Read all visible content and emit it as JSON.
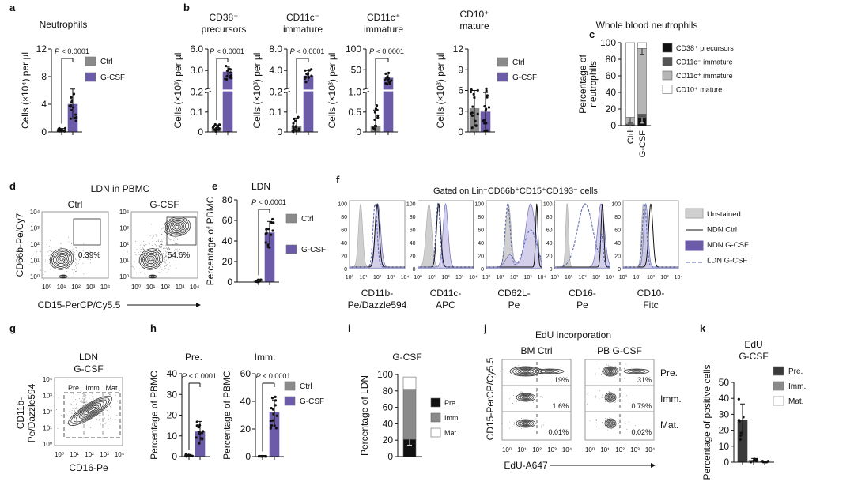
{
  "colors": {
    "ctrl": "#8a8a8a",
    "gcsf": "#6b5ba8",
    "gcsf_light": "#c9c4e6",
    "unstained": "#cfcfcf",
    "black": "#111111",
    "dark_gray": "#555555",
    "light_gray": "#b5b5b5",
    "white": "#ffffff",
    "pre_k": "#3a3a3a"
  },
  "panel_letters": [
    "a",
    "b",
    "c",
    "d",
    "e",
    "f",
    "g",
    "h",
    "i",
    "j",
    "k"
  ],
  "legend_two": {
    "ctrl": "Ctrl",
    "gcsf": "G-CSF"
  },
  "pvalue": "P < 0.0001",
  "chart_data": [
    {
      "id": "a",
      "type": "bar",
      "title": [
        "Neutrophils"
      ],
      "ylabel": "Cells (×10⁴) per µl",
      "ylim": [
        0,
        12
      ],
      "yticks": [
        "0",
        "4",
        "8",
        "12"
      ],
      "categories": [
        "Ctrl",
        "G-CSF"
      ],
      "values": [
        0.3,
        4.0
      ],
      "errors": [
        0.2,
        2.2
      ],
      "pvalue": "P < 0.0001",
      "legend": [
        "Ctrl",
        "G-CSF"
      ]
    },
    {
      "id": "b1",
      "type": "bar",
      "title": [
        "CD38⁺",
        "precursors"
      ],
      "ylabel": "Cells (×10³) per µl",
      "y_segments": [
        [
          0,
          0.2
        ],
        [
          0.45,
          6.0
        ]
      ],
      "yticks": [
        "0",
        "0.1",
        "0.2",
        "3.0",
        "6.0"
      ],
      "categories": [
        "Ctrl",
        "G-CSF"
      ],
      "values": [
        0.02,
        2.8
      ],
      "errors": [
        0.015,
        0.8
      ],
      "pvalue": "P < 0.0001"
    },
    {
      "id": "b2",
      "type": "bar",
      "title": [
        "CD11c⁻",
        "immature"
      ],
      "ylabel": "Cells (×10³) per µl",
      "y_segments": [
        [
          0,
          0.2
        ],
        [
          0.6,
          8.0
        ]
      ],
      "yticks": [
        "0",
        "0.1",
        "0.2",
        "4.0",
        "8.0"
      ],
      "categories": [
        "Ctrl",
        "G-CSF"
      ],
      "values": [
        0.03,
        3.0
      ],
      "errors": [
        0.04,
        1.0
      ],
      "pvalue": "P < 0.0001"
    },
    {
      "id": "b3",
      "type": "bar",
      "title": [
        "CD11c⁺",
        "immature"
      ],
      "ylabel": "Cells (×10³) per µl",
      "y_segments": [
        [
          0,
          1.0
        ],
        [
          4,
          100
        ]
      ],
      "yticks": [
        "0",
        "0.5",
        "1.0",
        "50",
        "100"
      ],
      "categories": [
        "Ctrl",
        "G-CSF"
      ],
      "values": [
        0.15,
        30
      ],
      "errors": [
        0.4,
        12
      ],
      "pvalue": "P < 0.0001"
    },
    {
      "id": "b4",
      "type": "bar",
      "title": [
        "CD10⁺",
        "mature"
      ],
      "ylabel": "Cells (×10³) per µl",
      "ylim": [
        0,
        12
      ],
      "yticks": [
        "0",
        "3",
        "6",
        "9",
        "12"
      ],
      "categories": [
        "Ctrl",
        "G-CSF"
      ],
      "values": [
        3.4,
        2.9
      ],
      "errors": [
        2.6,
        2.8
      ],
      "legend": [
        "Ctrl",
        "G-CSF"
      ]
    },
    {
      "id": "c",
      "type": "stacked_bar",
      "title": [
        "Whole blood neutrophils"
      ],
      "ylabel": [
        "Percentage of",
        "neutrophils"
      ],
      "ylim": [
        0,
        100
      ],
      "yticks": [
        "0",
        "20",
        "40",
        "60",
        "80",
        "100"
      ],
      "categories": [
        "Ctrl",
        "G-CSF"
      ],
      "series": [
        {
          "name": "CD38⁺ precursors",
          "values": [
            1,
            10
          ]
        },
        {
          "name": "CD11c⁻ immature",
          "values": [
            1,
            4
          ]
        },
        {
          "name": "CD11c⁺ immature",
          "values": [
            8,
            79
          ]
        },
        {
          "name": "CD10⁺ mature",
          "values": [
            90,
            7
          ]
        }
      ]
    },
    {
      "id": "d",
      "type": "flow",
      "title": "LDN in PBMC",
      "plots": [
        {
          "label": "Ctrl",
          "gate": "0.39%"
        },
        {
          "label": "G-CSF",
          "gate": "54.6%"
        }
      ],
      "xlabel": "CD15-PerCP/Cy5.5",
      "ylabel": "CD66b-Pe/Cy7",
      "ticks": [
        "10⁰",
        "10¹",
        "10²",
        "10³",
        "10⁴"
      ]
    },
    {
      "id": "e",
      "type": "bar",
      "title": [
        "LDN"
      ],
      "ylabel": "Percentage of PBMC",
      "ylim": [
        0,
        80
      ],
      "yticks": [
        "0",
        "20",
        "40",
        "60",
        "80"
      ],
      "categories": [
        "Ctrl",
        "G-CSF"
      ],
      "values": [
        1,
        48
      ],
      "errors": [
        1,
        11
      ],
      "pvalue": "P < 0.0001",
      "legend": [
        "Ctrl",
        "G-CSF"
      ]
    },
    {
      "id": "f",
      "type": "histogram",
      "title": "Gated on Lin⁻CD66b⁺CD15⁺CD193⁻ cells",
      "yticks": [
        "0",
        "20",
        "40",
        "60",
        "80",
        "100"
      ],
      "xticks": [
        "10⁰",
        "10¹",
        "10²",
        "10³",
        "10⁴"
      ],
      "legend": [
        "Unstained",
        "NDN Ctrl",
        "NDN G-CSF",
        "LDN G-CSF"
      ],
      "markers": [
        {
          "label": [
            "CD11b-",
            "Pe/Dazzle594"
          ],
          "unstained": [
            [
              0.8,
              0.15,
              1
            ]
          ],
          "ndn_ctrl": [
            [
              2.0,
              0.15,
              1
            ]
          ],
          "ndn_gcsf": [
            [
              2.05,
              0.2,
              1
            ]
          ],
          "ldn_gcsf": [
            [
              1.85,
              0.15,
              1
            ]
          ]
        },
        {
          "label": [
            "CD11c-",
            "APC"
          ],
          "unstained": [
            [
              0.8,
              0.2,
              1
            ]
          ],
          "ndn_ctrl": [
            [
              1.5,
              0.15,
              1
            ]
          ],
          "ndn_gcsf": [
            [
              2.0,
              0.18,
              1
            ]
          ],
          "ldn_gcsf": [
            [
              1.45,
              0.15,
              1
            ]
          ]
        },
        {
          "label": [
            "CD62L-",
            "Pe"
          ],
          "unstained": [
            [
              1.6,
              0.2,
              1
            ]
          ],
          "ndn_ctrl": [
            [
              3.65,
              0.08,
              1
            ]
          ],
          "ndn_gcsf": [
            [
              1.7,
              0.3,
              0.15
            ],
            [
              3.2,
              0.35,
              0.78
            ]
          ],
          "ldn_gcsf": [
            [
              1.55,
              0.18,
              0.85
            ],
            [
              3.2,
              0.45,
              0.5
            ]
          ]
        },
        {
          "label": [
            "CD16-",
            "Pe"
          ],
          "unstained": [
            [
              0.9,
              0.1,
              1
            ]
          ],
          "ndn_ctrl": [
            [
              3.45,
              0.1,
              1
            ]
          ],
          "ndn_gcsf": [
            [
              3.35,
              0.25,
              1
            ]
          ],
          "ldn_gcsf": [
            [
              2.2,
              0.55,
              0.95
            ],
            [
              3.4,
              0.1,
              0.4
            ]
          ]
        },
        {
          "label": [
            "CD10-",
            "Fitc"
          ],
          "unstained": [
            [
              1.45,
              0.12,
              1
            ]
          ],
          "ndn_ctrl": [
            [
              2.0,
              0.15,
              1
            ]
          ],
          "ndn_gcsf": [
            [
              1.65,
              0.15,
              1
            ]
          ],
          "ldn_gcsf": [
            [
              1.55,
              0.15,
              0.98
            ]
          ]
        }
      ]
    },
    {
      "id": "g",
      "type": "flow",
      "title": [
        "LDN",
        "G-CSF"
      ],
      "xlabel": "CD16-Pe",
      "ylabel": [
        "CD11b-",
        "Pe/Dazzle594"
      ],
      "gates": [
        "Pre",
        "Imm",
        "Mat"
      ],
      "ticks": [
        "10⁰",
        "10¹",
        "10²",
        "10³",
        "10⁴"
      ]
    },
    {
      "id": "h1",
      "type": "bar",
      "title": [
        "Pre."
      ],
      "ylabel": "Percentage of  PBMC",
      "ylim": [
        0,
        40
      ],
      "yticks": [
        "0",
        "10",
        "20",
        "30",
        "40"
      ],
      "categories": [
        "Ctrl",
        "G-CSF"
      ],
      "values": [
        0.5,
        12
      ],
      "errors": [
        0.4,
        5
      ],
      "pvalue": "P < 0.0001"
    },
    {
      "id": "h2",
      "type": "bar",
      "title": [
        "Imm."
      ],
      "ylabel": "Percentage of  PBMC",
      "ylim": [
        0,
        60
      ],
      "yticks": [
        "0",
        "20",
        "40",
        "60"
      ],
      "categories": [
        "Ctrl",
        "G-CSF"
      ],
      "values": [
        0.2,
        32
      ],
      "errors": [
        0.1,
        9
      ],
      "pvalue": "P < 0.0001",
      "legend": [
        "Ctrl",
        "G-CSF"
      ]
    },
    {
      "id": "i",
      "type": "stacked_bar",
      "title": [
        "G-CSF"
      ],
      "ylabel": [
        "Percentage of LDN"
      ],
      "ylim": [
        0,
        100
      ],
      "yticks": [
        "0",
        "20",
        "40",
        "60",
        "80",
        "100"
      ],
      "categories": [
        "G-CSF"
      ],
      "series": [
        {
          "name": "Pre.",
          "values": [
            21
          ]
        },
        {
          "name": "Imm.",
          "values": [
            61
          ]
        },
        {
          "name": "Mat.",
          "values": [
            15
          ]
        }
      ]
    },
    {
      "id": "j",
      "type": "flow",
      "title": "EdU incorporation",
      "columns": [
        "BM Ctrl",
        "PB G-CSF"
      ],
      "rows": [
        "Pre.",
        "Imm.",
        "Mat."
      ],
      "percentages": [
        [
          "19%",
          "31%"
        ],
        [
          "1.6%",
          "0.79%"
        ],
        [
          "0.01%",
          "0.02%"
        ]
      ],
      "xlabel": "EdU-A647",
      "ylabel": "CD15-PerCP/Cy5.5",
      "ticks": [
        "10⁰",
        "10¹",
        "10²",
        "10³",
        "10⁴"
      ]
    },
    {
      "id": "k",
      "type": "bar",
      "title": [
        "EdU",
        "G-CSF"
      ],
      "ylabel": "Percentage of positive cells",
      "ylim": [
        0,
        50
      ],
      "yticks": [
        "0",
        "10",
        "20",
        "30",
        "40",
        "50"
      ],
      "categories": [
        "Pre.",
        "Imm.",
        "Mat."
      ],
      "values": [
        26.5,
        1.3,
        0.3
      ],
      "errors": [
        10,
        1,
        0.3
      ],
      "legend": [
        "Pre.",
        "Imm.",
        "Mat."
      ]
    }
  ]
}
